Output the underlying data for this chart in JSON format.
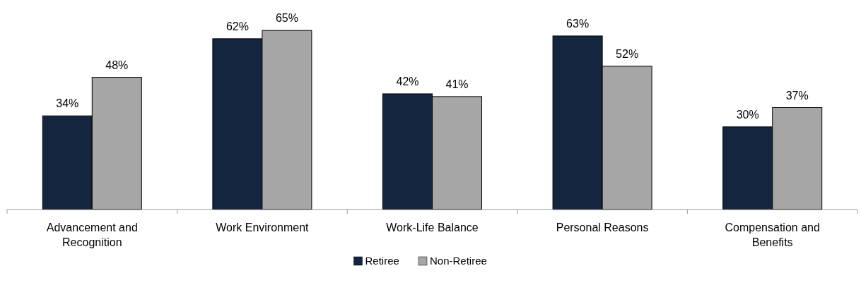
{
  "chart_data": {
    "type": "bar",
    "categories": [
      "Advancement and Recognition",
      "Work Environment",
      "Work-Life Balance",
      "Personal Reasons",
      "Compensation and Benefits"
    ],
    "series": [
      {
        "name": "Retiree",
        "color": "#13253f",
        "values": [
          34,
          62,
          42,
          63,
          30
        ],
        "value_labels": [
          "34%",
          "62%",
          "42%",
          "63%",
          "30%"
        ]
      },
      {
        "name": "Non-Retiree",
        "color": "#a6a6a6",
        "values": [
          48,
          65,
          41,
          52,
          37
        ],
        "value_labels": [
          "48%",
          "65%",
          "41%",
          "52%",
          "37%"
        ]
      }
    ],
    "legend": "bottom",
    "grid": false
  }
}
